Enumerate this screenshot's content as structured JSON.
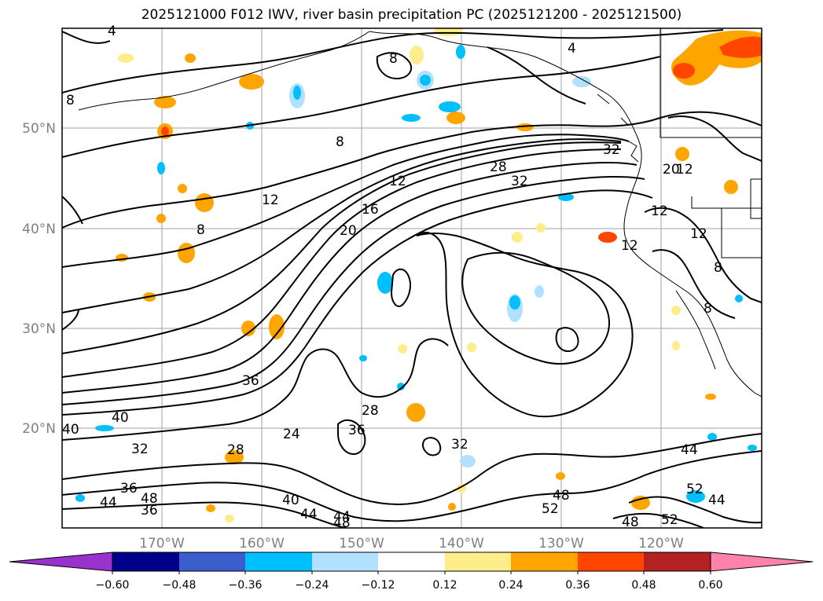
{
  "title": "2025121000 F012 IWV, river basin precipitation PC (2025121200 - 2025121500)",
  "map": {
    "lat_labels": [
      "50°N",
      "40°N",
      "30°N",
      "20°N"
    ],
    "lon_labels": [
      "170°W",
      "160°W",
      "150°W",
      "140°W",
      "130°W",
      "120°W"
    ],
    "gridlines": true
  },
  "contour_labels": [
    "4",
    "4",
    "8",
    "8",
    "8",
    "8",
    "8",
    "8",
    "12",
    "12",
    "12",
    "12",
    "12",
    "12",
    "16",
    "20",
    "20",
    "24",
    "28",
    "28",
    "28",
    "32",
    "32",
    "32",
    "32",
    "36",
    "36",
    "36",
    "36",
    "40",
    "40",
    "40",
    "44",
    "44",
    "44",
    "44",
    "44",
    "48",
    "48",
    "48",
    "48",
    "52",
    "52",
    "52"
  ],
  "colorbar": {
    "ticks": [
      "−0.60",
      "−0.48",
      "−0.36",
      "−0.24",
      "−0.12",
      "0.12",
      "0.24",
      "0.36",
      "0.48",
      "0.60"
    ],
    "colors": [
      "#9932cc",
      "#00008b",
      "#3a5fcd",
      "#00bfff",
      "#b0e2ff",
      "#ffffff",
      "#ffec8b",
      "#ffa500",
      "#ff4500",
      "#b22222",
      "#ff82ab"
    ]
  }
}
